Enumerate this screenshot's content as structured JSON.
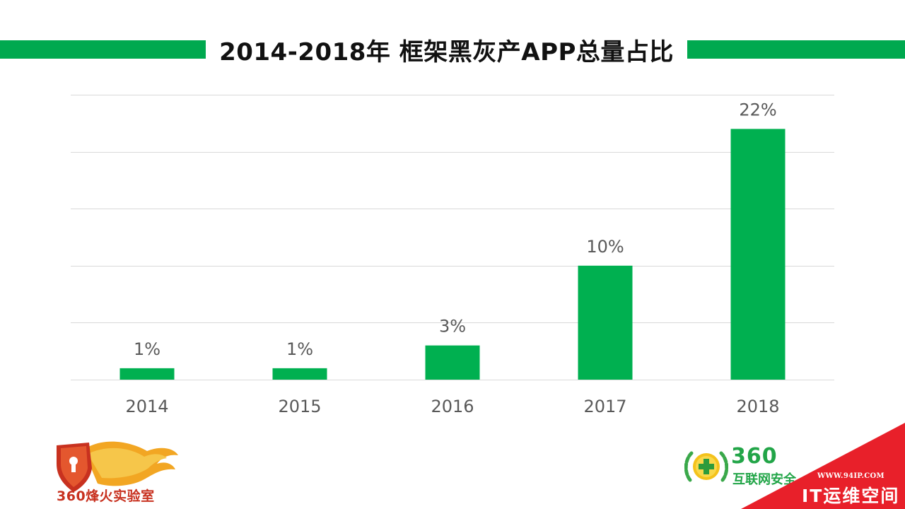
{
  "header": {
    "title": "2014-2018年 框架黑灰产APP总量占比"
  },
  "colors": {
    "accent": "#00a94f",
    "bar": "#00b050",
    "gridline": "#d9d9d9",
    "label_text": "#595959",
    "corner_red": "#e8202a"
  },
  "chart_data": {
    "type": "bar",
    "title": "2014-2018年 框架黑灰产APP总量占比",
    "categories": [
      "2014",
      "2015",
      "2016",
      "2017",
      "2018"
    ],
    "values": [
      1,
      1,
      3,
      10,
      22
    ],
    "data_labels": [
      "1%",
      "1%",
      "3%",
      "10%",
      "22%"
    ],
    "unit": "%",
    "xlabel": "",
    "ylabel": "",
    "ylim": [
      0,
      25
    ],
    "gridline_step": 5,
    "grid": true,
    "legend": "none"
  },
  "logos": {
    "left_text": "360烽火实验室",
    "right_number": "360",
    "right_text": "互联网安全",
    "left_icon": "shield-fire-keyhole-logo",
    "right_icon": "360-plus-laurel-logo"
  },
  "watermark": {
    "url": "WWW.94IP.COM",
    "text": "IT运维空间"
  }
}
